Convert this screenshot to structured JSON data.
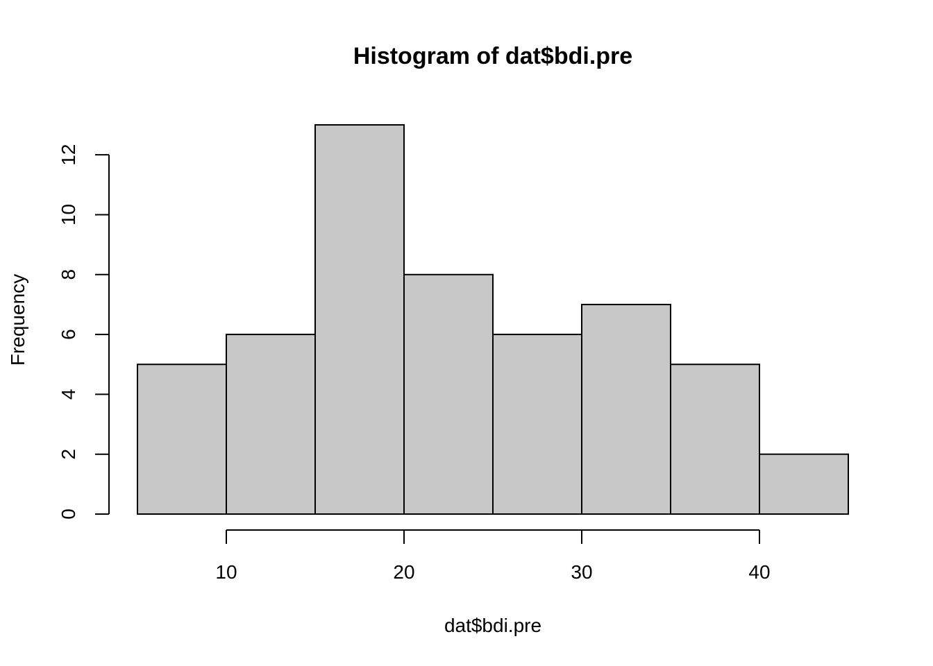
{
  "chart_data": {
    "type": "bar",
    "subtype": "histogram",
    "title": "Histogram of dat$bdi.pre",
    "xlabel": "dat$bdi.pre",
    "ylabel": "Frequency",
    "bins": [
      {
        "start": 5,
        "end": 10,
        "count": 5
      },
      {
        "start": 10,
        "end": 15,
        "count": 6
      },
      {
        "start": 15,
        "end": 20,
        "count": 13
      },
      {
        "start": 20,
        "end": 25,
        "count": 8
      },
      {
        "start": 25,
        "end": 30,
        "count": 6
      },
      {
        "start": 30,
        "end": 35,
        "count": 7
      },
      {
        "start": 35,
        "end": 40,
        "count": 5
      },
      {
        "start": 40,
        "end": 45,
        "count": 2
      }
    ],
    "xlim": [
      5,
      45
    ],
    "ylim": [
      0,
      13
    ],
    "x_ticks": [
      10,
      20,
      30,
      40
    ],
    "y_ticks": [
      0,
      2,
      4,
      6,
      8,
      10,
      12
    ],
    "bar_color": "#c8c8c8",
    "edge_color": "#000000",
    "grid": false,
    "legend": "none"
  }
}
